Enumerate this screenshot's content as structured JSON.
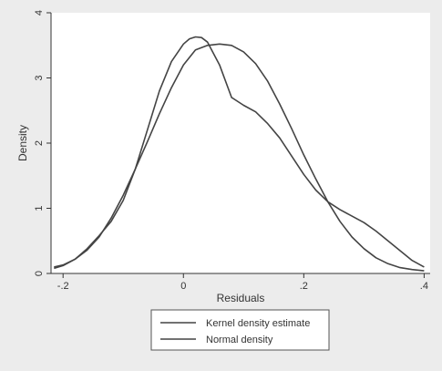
{
  "chart_data": {
    "type": "line",
    "title": "",
    "xlabel": "Residuals",
    "ylabel": "Density",
    "xlim": [
      -0.22,
      0.41
    ],
    "ylim": [
      0,
      4
    ],
    "x_ticks": [
      -0.2,
      0,
      0.2,
      0.4
    ],
    "x_tick_labels": [
      "-.2",
      "0",
      ".2",
      ".4"
    ],
    "y_ticks": [
      0,
      1,
      2,
      3,
      4
    ],
    "y_tick_labels": [
      "0",
      "1",
      "2",
      "3",
      "4"
    ],
    "grid": false,
    "legend_position": "bottom",
    "series": [
      {
        "name": "Kernel density estimate",
        "color": "#444444",
        "x": [
          -0.215,
          -0.2,
          -0.18,
          -0.16,
          -0.14,
          -0.12,
          -0.1,
          -0.08,
          -0.06,
          -0.04,
          -0.02,
          0,
          0.01,
          0.02,
          0.03,
          0.04,
          0.06,
          0.08,
          0.1,
          0.12,
          0.14,
          0.16,
          0.18,
          0.2,
          0.22,
          0.24,
          0.26,
          0.28,
          0.3,
          0.32,
          0.34,
          0.36,
          0.38,
          0.4
        ],
        "y": [
          0.1,
          0.13,
          0.22,
          0.38,
          0.58,
          0.8,
          1.12,
          1.6,
          2.2,
          2.8,
          3.25,
          3.52,
          3.6,
          3.63,
          3.62,
          3.55,
          3.2,
          2.7,
          2.58,
          2.48,
          2.3,
          2.08,
          1.8,
          1.52,
          1.28,
          1.1,
          0.98,
          0.88,
          0.78,
          0.65,
          0.5,
          0.35,
          0.2,
          0.1
        ]
      },
      {
        "name": "Normal density",
        "color": "#444444",
        "x": [
          -0.215,
          -0.2,
          -0.18,
          -0.16,
          -0.14,
          -0.12,
          -0.1,
          -0.08,
          -0.06,
          -0.04,
          -0.02,
          0,
          0.02,
          0.04,
          0.06,
          0.08,
          0.1,
          0.12,
          0.14,
          0.16,
          0.18,
          0.2,
          0.22,
          0.24,
          0.26,
          0.28,
          0.3,
          0.32,
          0.34,
          0.36,
          0.38,
          0.4
        ],
        "y": [
          0.08,
          0.12,
          0.22,
          0.36,
          0.56,
          0.85,
          1.2,
          1.6,
          2.02,
          2.45,
          2.85,
          3.2,
          3.43,
          3.5,
          3.52,
          3.5,
          3.4,
          3.22,
          2.95,
          2.6,
          2.22,
          1.82,
          1.45,
          1.1,
          0.8,
          0.56,
          0.38,
          0.24,
          0.15,
          0.09,
          0.06,
          0.04
        ]
      }
    ]
  }
}
